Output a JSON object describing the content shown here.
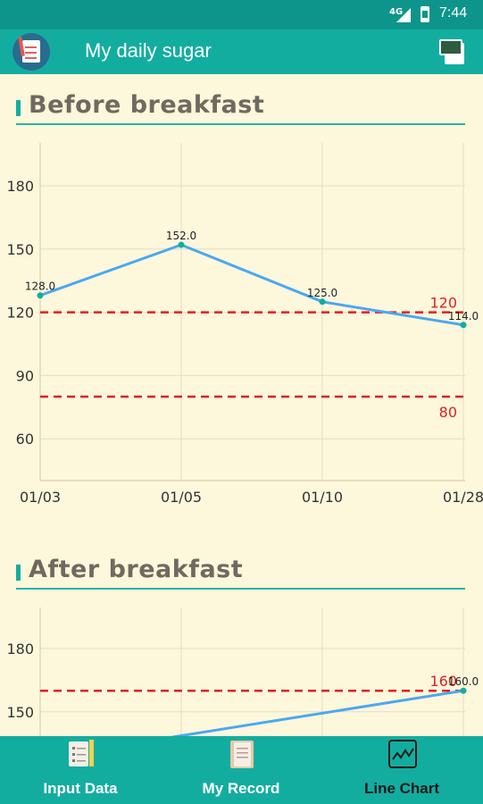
{
  "status_bar": {
    "network": "4G",
    "time": "7:44"
  },
  "app_bar": {
    "title": "My daily sugar",
    "app_icon": "notebook-icon",
    "action_icon": "export-excel-icon"
  },
  "colors": {
    "primary": "#13ada0",
    "status": "#0e958b",
    "background": "#fdf7dc",
    "line": "#4aa8f0",
    "limit": "#e02020"
  },
  "sections": [
    {
      "title": "Before breakfast"
    },
    {
      "title": "After breakfast"
    }
  ],
  "chart_data": [
    {
      "type": "line",
      "title": "Before breakfast",
      "categories": [
        "01/03",
        "01/05",
        "01/10",
        "01/28"
      ],
      "series": [
        {
          "values": [
            128.0,
            152.0,
            125.0,
            114.0
          ],
          "labels": [
            "128.0",
            "152.0",
            "125.0",
            "114.0"
          ]
        }
      ],
      "y_ticks": [
        "60",
        "90",
        "120",
        "150",
        "180"
      ],
      "ylim": [
        37,
        197
      ],
      "limit_lines": [
        {
          "value": 120,
          "label": "120"
        },
        {
          "value": 80,
          "label": "80"
        }
      ],
      "grid": true
    },
    {
      "type": "line",
      "title": "After breakfast",
      "series": [
        {
          "values": [
            null,
            null,
            null,
            160.0
          ],
          "labels": [
            "",
            "",
            "",
            "160.0"
          ]
        }
      ],
      "y_ticks": [
        "150",
        "180"
      ],
      "ylim": [
        37,
        197
      ],
      "limit_lines": [
        {
          "value": 160,
          "label": "160"
        }
      ],
      "grid": true,
      "visible_partial": true
    }
  ],
  "bottom_nav": [
    {
      "label": "Input Data",
      "icon": "input-data-icon",
      "active": false
    },
    {
      "label": "My Record",
      "icon": "record-book-icon",
      "active": false
    },
    {
      "label": "Line Chart",
      "icon": "line-chart-icon",
      "active": true
    }
  ]
}
